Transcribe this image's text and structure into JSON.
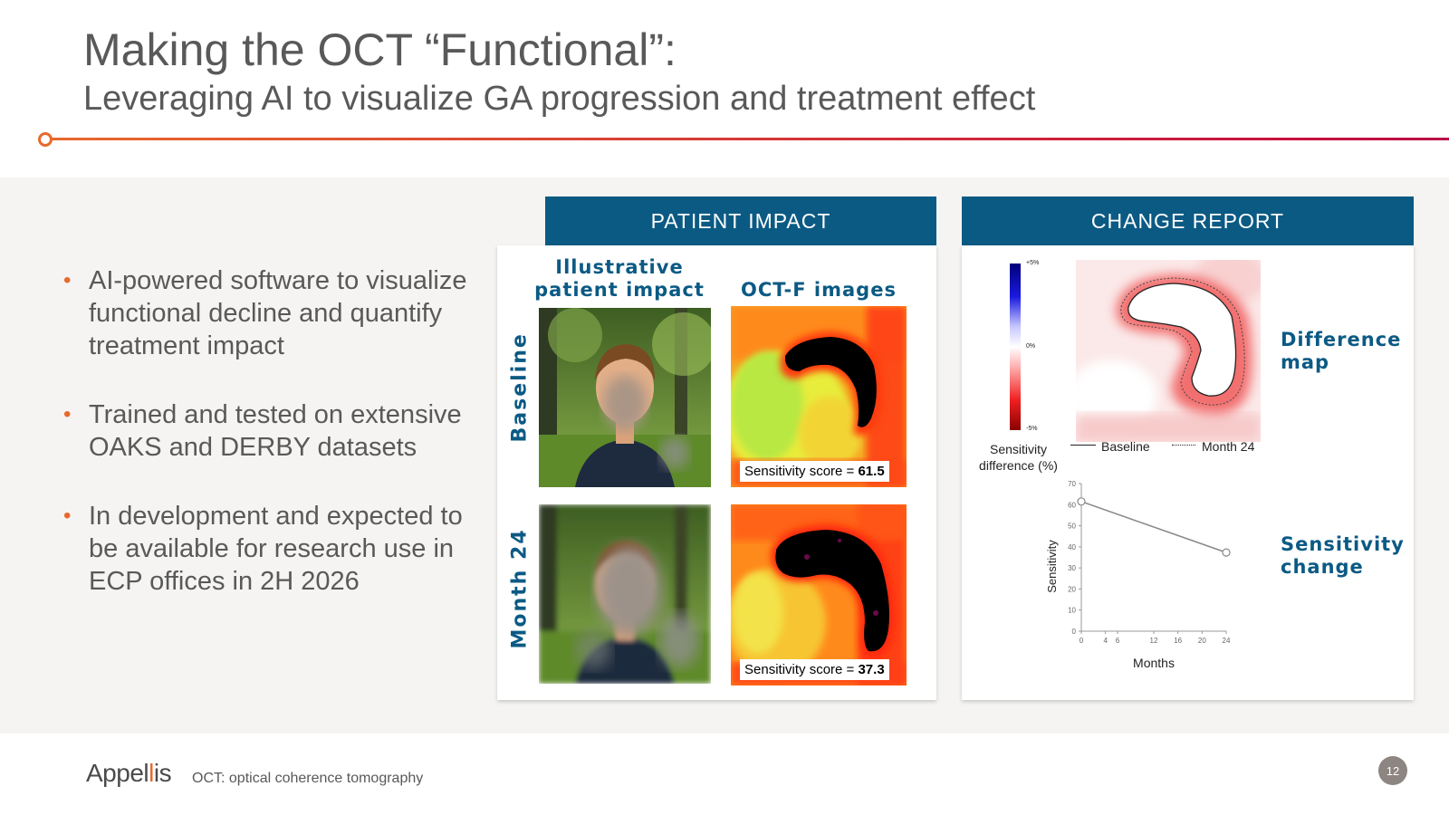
{
  "title": "Making the OCT “Functional”:",
  "subtitle": "Leveraging AI to visualize GA progression and treatment effect",
  "bullets": [
    "AI-powered software to visualize functional decline and quantify treatment impact",
    "Trained and tested on extensive OAKS and DERBY datasets",
    "In development and expected to be available for research use in ECP offices in 2H 2026"
  ],
  "patient_impact": {
    "header": "PATIENT IMPACT",
    "col_illustrative": "Illustrative patient impact",
    "col_octf": "OCT-F images",
    "row_baseline": "Baseline",
    "row_month24": "Month 24",
    "score_label": "Sensitivity score = ",
    "score_baseline": "61.5",
    "score_month24": "37.3"
  },
  "change_report": {
    "header": "CHANGE REPORT",
    "colorbar_top": "+5%",
    "colorbar_mid": "0%",
    "colorbar_bottom": "-5%",
    "colorbar_label": "Sensitivity difference (%)",
    "legend_baseline": "Baseline",
    "legend_month24": "Month 24",
    "difference_map_label": "Difference map",
    "sensitivity_change_label": "Sensitivity change"
  },
  "chart_data": {
    "type": "line",
    "x": [
      0,
      24
    ],
    "y": [
      61.5,
      37.3
    ],
    "xlabel": "Months",
    "ylabel": "Sensitivity",
    "xticks": [
      0,
      4,
      6,
      12,
      16,
      20,
      24
    ],
    "yticks": [
      0,
      10,
      20,
      30,
      40,
      50,
      60,
      70
    ],
    "xlim": [
      0,
      24
    ],
    "ylim": [
      0,
      70
    ],
    "grid": false,
    "line_color": "#888888"
  },
  "colors": {
    "accent_orange": "#e8692c",
    "header_blue": "#0b5a84",
    "rule_end": "#b80b45"
  },
  "footer": {
    "logo_pre": "Appel",
    "logo_i": "l",
    "logo_post": "is",
    "note": "OCT: optical coherence tomography",
    "page": "12"
  }
}
